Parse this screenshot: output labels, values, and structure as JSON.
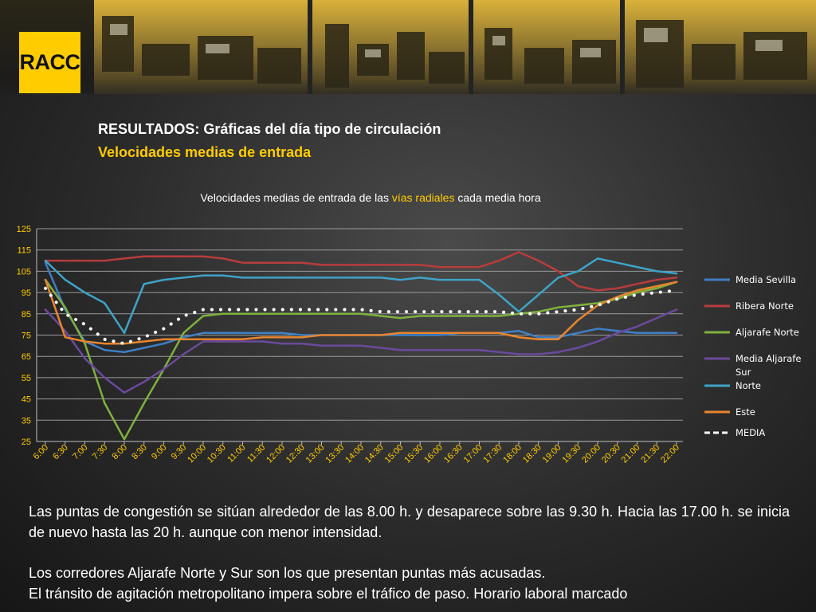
{
  "logo": {
    "text": "RACC",
    "color": "#ffcc00"
  },
  "header": {
    "title": "RESULTADOS: Gráficas del día tipo de circulación",
    "subtitle": "Velocidades medias de entrada"
  },
  "chart_heading": {
    "before": "Velocidades medias de entrada de las ",
    "highlight": "vías radiales",
    "after": " cada media hora"
  },
  "chart_data": {
    "type": "line",
    "title": "",
    "xlabel": "",
    "ylabel": "",
    "ylim": [
      25,
      125
    ],
    "yticks": [
      25,
      35,
      45,
      55,
      65,
      75,
      85,
      95,
      105,
      115,
      125
    ],
    "x_tick_labels": [
      "6:00",
      "6:30",
      "7:00",
      "7:30",
      "8:00",
      "8:30",
      "9:00",
      "9:30",
      "10:00",
      "10:30",
      "11:00",
      "11:30",
      "12:00",
      "12:30",
      "13:00",
      "13:30",
      "14:00",
      "14:30",
      "15:00",
      "15:30",
      "16:00",
      "16:30",
      "17:00",
      "17:30",
      "18:00",
      "18:30",
      "19:00",
      "19:30",
      "20:00",
      "20:30",
      "21:00",
      "21:30",
      "22:00"
    ],
    "grid": true,
    "legend_position": "right",
    "series": [
      {
        "name": "Media Sevilla",
        "color": "#3f7fc4",
        "style": "solid",
        "values": [
          109,
          87,
          72,
          68,
          67,
          69,
          71,
          74,
          76,
          76,
          76,
          76,
          76,
          75,
          75,
          75,
          75,
          75,
          75,
          75,
          75,
          76,
          76,
          76,
          77,
          74,
          74,
          76,
          78,
          77,
          76,
          76,
          76
        ]
      },
      {
        "name": "Ribera Norte",
        "color": "#b83c3c",
        "style": "solid",
        "values": [
          110,
          110,
          110,
          110,
          111,
          112,
          112,
          112,
          112,
          111,
          109,
          109,
          109,
          109,
          108,
          108,
          108,
          108,
          108,
          108,
          107,
          107,
          107,
          110,
          114,
          110,
          105,
          98,
          96,
          97,
          99,
          101,
          102
        ]
      },
      {
        "name": "Aljarafe Norte",
        "color": "#7fb13d",
        "style": "solid",
        "values": [
          101,
          88,
          71,
          43,
          26,
          43,
          59,
          76,
          84,
          85,
          85,
          85,
          85,
          85,
          85,
          85,
          85,
          84,
          83,
          84,
          84,
          84,
          84,
          84,
          85,
          86,
          88,
          89,
          90,
          92,
          95,
          97,
          100
        ]
      },
      {
        "name": "Media Aljarafe Sur",
        "color": "#6a4a9c",
        "style": "solid",
        "values": [
          87,
          77,
          64,
          55,
          48,
          53,
          59,
          66,
          72,
          72,
          72,
          72,
          71,
          71,
          70,
          70,
          70,
          69,
          68,
          68,
          68,
          68,
          68,
          67,
          66,
          66,
          67,
          69,
          72,
          76,
          79,
          83,
          87
        ]
      },
      {
        "name": "Norte",
        "color": "#3ea3c6",
        "style": "solid",
        "values": [
          110,
          101,
          95,
          90,
          76,
          99,
          101,
          102,
          103,
          103,
          102,
          102,
          102,
          102,
          102,
          102,
          102,
          102,
          101,
          102,
          101,
          101,
          101,
          94,
          86,
          94,
          102,
          105,
          111,
          109,
          107,
          105,
          104
        ]
      },
      {
        "name": "Este",
        "color": "#e8842e",
        "style": "solid",
        "values": [
          101,
          74,
          72,
          71,
          71,
          72,
          73,
          73,
          73,
          73,
          73,
          74,
          74,
          74,
          75,
          75,
          75,
          75,
          76,
          76,
          76,
          76,
          76,
          76,
          74,
          73,
          73,
          82,
          89,
          93,
          96,
          98,
          100
        ]
      },
      {
        "name": "MEDIA",
        "color": "#ffffff",
        "style": "dotted",
        "values": [
          97,
          85,
          80,
          73,
          71,
          74,
          78,
          84,
          87,
          87,
          87,
          87,
          87,
          87,
          87,
          87,
          87,
          86,
          86,
          86,
          86,
          86,
          86,
          86,
          85,
          85,
          86,
          87,
          89,
          92,
          94,
          95,
          96
        ]
      }
    ]
  },
  "notes": {
    "p1": "Las puntas de congestión se sitúan alrededor de las 8.00 h. y desaparece sobre las 9.30 h. Hacia las 17.00 h. se inicia de nuevo hasta las 20 h. aunque con menor intensidad.",
    "p2_line1": "Los corredores Aljarafe Norte y Sur son los que presentan puntas más acusadas.",
    "p2_line2": "El tránsito de agitación metropolitano impera sobre el tráfico de paso. Horario laboral marcado"
  }
}
